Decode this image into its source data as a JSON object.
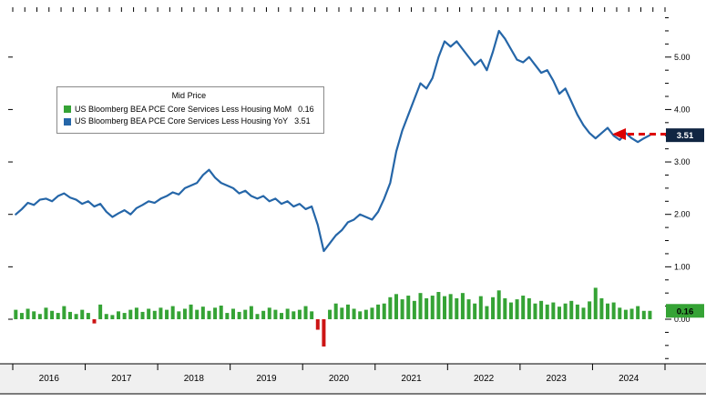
{
  "chart_data": {
    "type": "mixed",
    "title": "Mid Price",
    "x_frequency": "monthly",
    "x": [
      "2016-01",
      "2016-02",
      "2016-03",
      "2016-04",
      "2016-05",
      "2016-06",
      "2016-07",
      "2016-08",
      "2016-09",
      "2016-10",
      "2016-11",
      "2016-12",
      "2017-01",
      "2017-02",
      "2017-03",
      "2017-04",
      "2017-05",
      "2017-06",
      "2017-07",
      "2017-08",
      "2017-09",
      "2017-10",
      "2017-11",
      "2017-12",
      "2018-01",
      "2018-02",
      "2018-03",
      "2018-04",
      "2018-05",
      "2018-06",
      "2018-07",
      "2018-08",
      "2018-09",
      "2018-10",
      "2018-11",
      "2018-12",
      "2019-01",
      "2019-02",
      "2019-03",
      "2019-04",
      "2019-05",
      "2019-06",
      "2019-07",
      "2019-08",
      "2019-09",
      "2019-10",
      "2019-11",
      "2019-12",
      "2020-01",
      "2020-02",
      "2020-03",
      "2020-04",
      "2020-05",
      "2020-06",
      "2020-07",
      "2020-08",
      "2020-09",
      "2020-10",
      "2020-11",
      "2020-12",
      "2021-01",
      "2021-02",
      "2021-03",
      "2021-04",
      "2021-05",
      "2021-06",
      "2021-07",
      "2021-08",
      "2021-09",
      "2021-10",
      "2021-11",
      "2021-12",
      "2022-01",
      "2022-02",
      "2022-03",
      "2022-04",
      "2022-05",
      "2022-06",
      "2022-07",
      "2022-08",
      "2022-09",
      "2022-10",
      "2022-11",
      "2022-12",
      "2023-01",
      "2023-02",
      "2023-03",
      "2023-04",
      "2023-05",
      "2023-06",
      "2023-07",
      "2023-08",
      "2023-09",
      "2023-10",
      "2023-11",
      "2023-12",
      "2024-01",
      "2024-02",
      "2024-03",
      "2024-04",
      "2024-05",
      "2024-06",
      "2024-07",
      "2024-08",
      "2024-09",
      "2024-10"
    ],
    "x_slots": 108,
    "series": [
      {
        "name": "US Bloomberg BEA PCE Core Services Less Housing MoM",
        "type": "bar",
        "color": "#35a335",
        "negative_color": "#cc1414",
        "last_value": 0.16,
        "values": [
          0.18,
          0.12,
          0.2,
          0.15,
          0.1,
          0.22,
          0.16,
          0.12,
          0.25,
          0.14,
          0.1,
          0.18,
          0.12,
          -0.08,
          0.28,
          0.1,
          0.08,
          0.15,
          0.12,
          0.18,
          0.22,
          0.14,
          0.2,
          0.16,
          0.22,
          0.18,
          0.25,
          0.15,
          0.2,
          0.28,
          0.18,
          0.24,
          0.16,
          0.22,
          0.26,
          0.12,
          0.2,
          0.14,
          0.18,
          0.25,
          0.1,
          0.16,
          0.22,
          0.18,
          0.12,
          0.2,
          0.15,
          0.18,
          0.25,
          0.15,
          -0.2,
          -0.52,
          0.18,
          0.3,
          0.22,
          0.28,
          0.2,
          0.15,
          0.18,
          0.22,
          0.28,
          0.3,
          0.42,
          0.48,
          0.38,
          0.45,
          0.35,
          0.5,
          0.4,
          0.45,
          0.52,
          0.44,
          0.48,
          0.4,
          0.5,
          0.38,
          0.3,
          0.44,
          0.25,
          0.42,
          0.55,
          0.4,
          0.32,
          0.38,
          0.45,
          0.4,
          0.3,
          0.35,
          0.28,
          0.32,
          0.24,
          0.3,
          0.35,
          0.28,
          0.22,
          0.34,
          0.6,
          0.4,
          0.3,
          0.32,
          0.22,
          0.18,
          0.2,
          0.25,
          0.16,
          0.16
        ]
      },
      {
        "name": "US Bloomberg BEA PCE Core Services Less Housing YoY",
        "type": "line",
        "color": "#2566a8",
        "last_value": 3.51,
        "values": [
          2.0,
          2.1,
          2.22,
          2.18,
          2.28,
          2.3,
          2.25,
          2.35,
          2.4,
          2.32,
          2.28,
          2.2,
          2.25,
          2.15,
          2.2,
          2.05,
          1.95,
          2.02,
          2.08,
          2.0,
          2.12,
          2.18,
          2.25,
          2.22,
          2.3,
          2.35,
          2.42,
          2.38,
          2.5,
          2.55,
          2.6,
          2.75,
          2.85,
          2.7,
          2.6,
          2.55,
          2.5,
          2.4,
          2.45,
          2.35,
          2.3,
          2.35,
          2.25,
          2.3,
          2.2,
          2.25,
          2.15,
          2.2,
          2.1,
          2.15,
          1.8,
          1.3,
          1.45,
          1.6,
          1.7,
          1.85,
          1.9,
          2.0,
          1.95,
          1.9,
          2.05,
          2.3,
          2.6,
          3.2,
          3.6,
          3.9,
          4.2,
          4.5,
          4.4,
          4.6,
          5.0,
          5.3,
          5.2,
          5.3,
          5.15,
          5.0,
          4.85,
          4.95,
          4.75,
          5.1,
          5.5,
          5.35,
          5.15,
          4.95,
          4.9,
          5.0,
          4.85,
          4.7,
          4.75,
          4.55,
          4.3,
          4.4,
          4.15,
          3.9,
          3.7,
          3.55,
          3.45,
          3.55,
          3.65,
          3.5,
          3.42,
          3.55,
          3.45,
          3.38,
          3.45,
          3.51
        ]
      }
    ],
    "ylim": [
      -0.85,
      5.95
    ],
    "yticks": [
      "0.00",
      "1.00",
      "2.00",
      "3.00",
      "4.00",
      "5.00"
    ],
    "y_axis_side": "right",
    "grid": false,
    "x_year_labels": [
      "2016",
      "2017",
      "2018",
      "2019",
      "2020",
      "2021",
      "2022",
      "2023",
      "2024"
    ],
    "legend": {
      "position": "upper-left-inside",
      "title": "Mid Price",
      "items": [
        {
          "swatch": "#35a335",
          "label": "US Bloomberg BEA PCE Core Services Less Housing MoM",
          "value": "0.16"
        },
        {
          "swatch": "#2566a8",
          "label": "US Bloomberg BEA PCE Core Services Less Housing YoY",
          "value": "3.51"
        }
      ]
    },
    "badges": [
      {
        "text": "3.51",
        "value": 3.51,
        "bg": "#102542",
        "fg": "#ffffff"
      },
      {
        "text": "0.16",
        "value": 0.16,
        "bg": "#35a335",
        "fg": "#000000"
      }
    ],
    "annotation_arrow": {
      "description": "red dashed horizontal arrow pointing left at recent flat YoY level",
      "color": "#dd0000",
      "y_value": 3.53
    }
  }
}
